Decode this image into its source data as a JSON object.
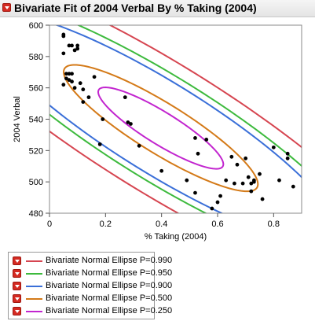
{
  "window": {
    "title": "Bivariate Fit of 2004 Verbal By % Taking (2004)"
  },
  "chart_data": {
    "type": "scatter",
    "xlabel": "% Taking (2004)",
    "ylabel": "2004 Verbal",
    "xlim": [
      0,
      0.9
    ],
    "ylim": [
      480,
      600
    ],
    "xticks": [
      "0",
      "0.2",
      "0.4",
      "0.6",
      "0.8"
    ],
    "yticks": [
      "480",
      "500",
      "520",
      "540",
      "560",
      "580",
      "600"
    ],
    "grid": false,
    "point_color": "#000000",
    "points": [
      [
        0.05,
        594
      ],
      [
        0.05,
        593
      ],
      [
        0.05,
        582
      ],
      [
        0.05,
        562
      ],
      [
        0.06,
        569
      ],
      [
        0.06,
        566
      ],
      [
        0.07,
        587
      ],
      [
        0.07,
        569
      ],
      [
        0.07,
        565
      ],
      [
        0.08,
        587
      ],
      [
        0.08,
        569
      ],
      [
        0.08,
        564
      ],
      [
        0.09,
        584
      ],
      [
        0.09,
        560
      ],
      [
        0.1,
        587
      ],
      [
        0.1,
        585
      ],
      [
        0.11,
        563
      ],
      [
        0.12,
        551
      ],
      [
        0.12,
        559
      ],
      [
        0.14,
        554
      ],
      [
        0.16,
        567
      ],
      [
        0.18,
        524
      ],
      [
        0.19,
        540
      ],
      [
        0.27,
        554
      ],
      [
        0.28,
        538
      ],
      [
        0.29,
        537
      ],
      [
        0.32,
        523
      ],
      [
        0.4,
        507
      ],
      [
        0.49,
        501
      ],
      [
        0.52,
        493
      ],
      [
        0.52,
        528
      ],
      [
        0.53,
        518
      ],
      [
        0.56,
        527
      ],
      [
        0.58,
        483
      ],
      [
        0.6,
        487
      ],
      [
        0.61,
        491
      ],
      [
        0.63,
        501
      ],
      [
        0.65,
        516
      ],
      [
        0.66,
        499
      ],
      [
        0.67,
        511
      ],
      [
        0.69,
        499
      ],
      [
        0.7,
        515
      ],
      [
        0.71,
        503
      ],
      [
        0.72,
        494
      ],
      [
        0.72,
        499
      ],
      [
        0.73,
        500
      ],
      [
        0.73,
        501
      ],
      [
        0.75,
        505
      ],
      [
        0.76,
        489
      ],
      [
        0.8,
        522
      ],
      [
        0.82,
        501
      ],
      [
        0.85,
        518
      ],
      [
        0.85,
        515
      ],
      [
        0.87,
        497
      ]
    ],
    "ellipses": [
      {
        "name": "Bivariate Normal Ellipse P=0.990",
        "p": 0.99,
        "color": "#d64550"
      },
      {
        "name": "Bivariate Normal Ellipse P=0.950",
        "p": 0.95,
        "color": "#3dba3d"
      },
      {
        "name": "Bivariate Normal Ellipse P=0.900",
        "p": 0.9,
        "color": "#3a6fd8"
      },
      {
        "name": "Bivariate Normal Ellipse P=0.500",
        "p": 0.5,
        "color": "#d47a18"
      },
      {
        "name": "Bivariate Normal Ellipse P=0.250",
        "p": 0.25,
        "color": "#c225cf"
      }
    ]
  }
}
